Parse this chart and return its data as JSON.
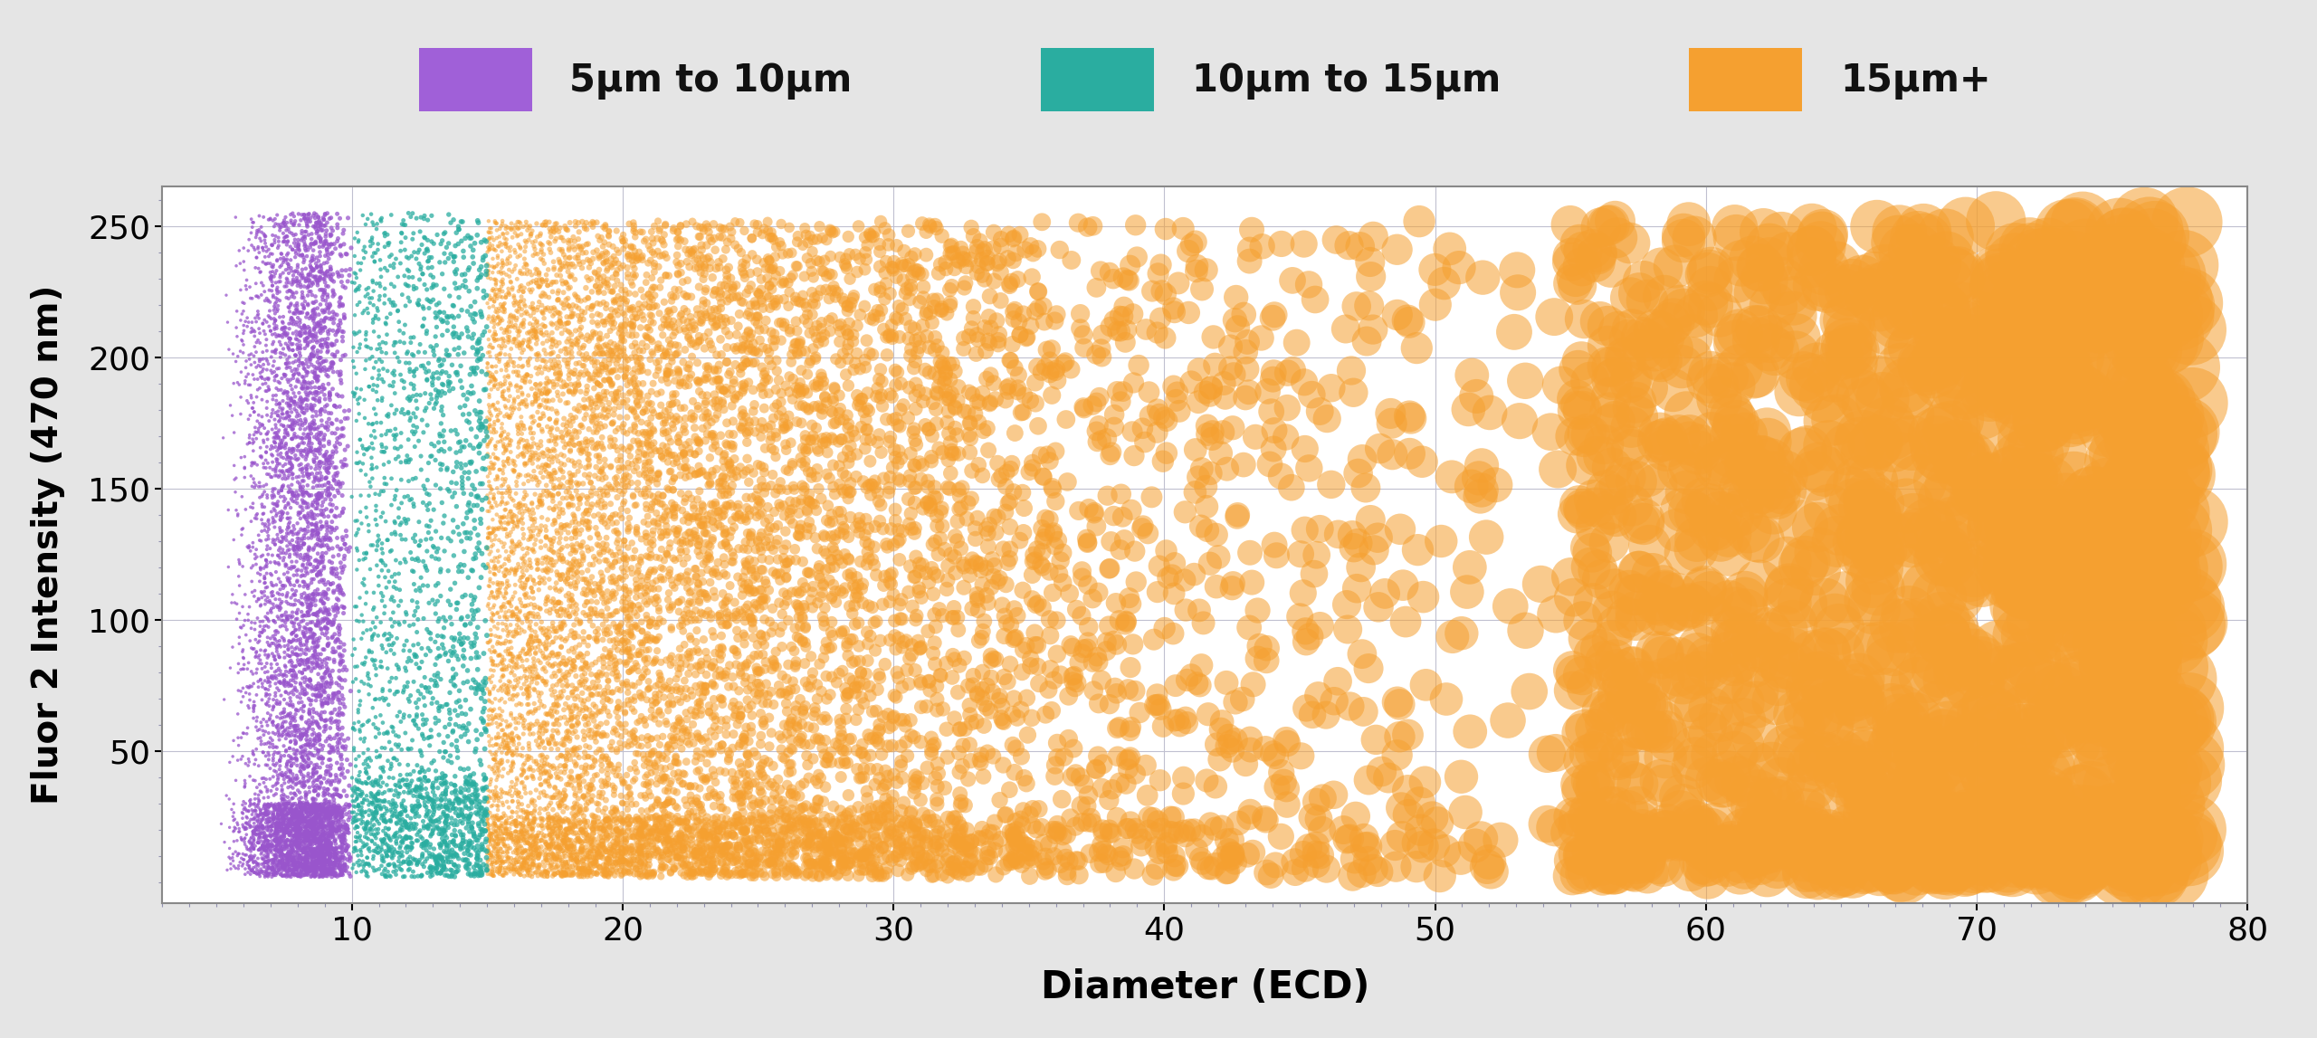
{
  "xlabel": "Diameter (ECD)",
  "ylabel": "Fluor 2 Intensity (470 nm)",
  "xlim": [
    3,
    80
  ],
  "ylim": [
    -8,
    265
  ],
  "xticks": [
    10,
    20,
    30,
    40,
    50,
    60,
    70,
    80
  ],
  "yticks": [
    50,
    100,
    150,
    200,
    250
  ],
  "background_color": "#e5e5e5",
  "plot_background": "#ffffff",
  "grid_color": "#c0c0d0",
  "legend_labels": [
    "5μm to 10μm",
    "10μm to 15μm",
    "15μm+"
  ],
  "legend_colors": [
    "#a060d8",
    "#2aada0",
    "#f5a030"
  ],
  "group1_color": "#9955cc",
  "group1_alpha": 0.75,
  "group1_n": 6000,
  "group2_color": "#2aada0",
  "group2_alpha": 0.75,
  "group2_n": 2500,
  "group3_color": "#f5a030",
  "group3_alpha": 0.55,
  "group3_n": 12000,
  "seed": 42
}
